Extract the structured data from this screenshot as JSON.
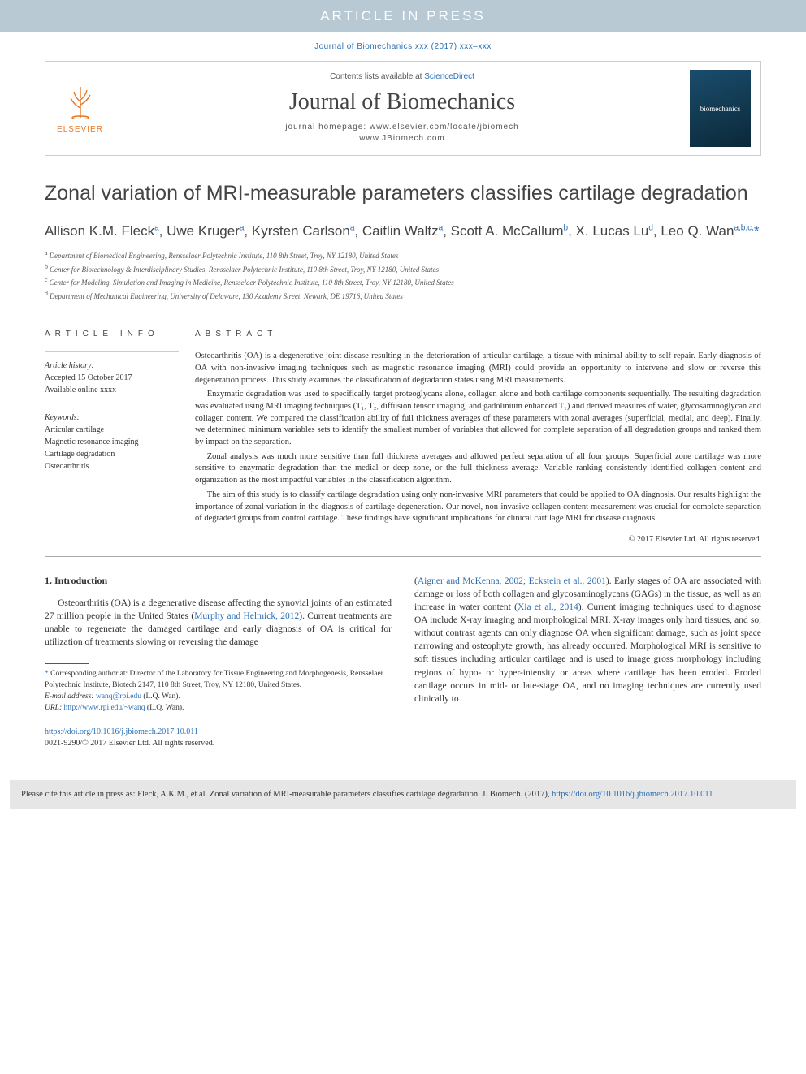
{
  "banner": {
    "text": "ARTICLE IN PRESS"
  },
  "citation": "Journal of Biomechanics xxx (2017) xxx–xxx",
  "header": {
    "contents_prefix": "Contents lists available at ",
    "contents_link": "ScienceDirect",
    "journal_name": "Journal of Biomechanics",
    "homepage_label": "journal homepage: ",
    "homepage_urls": "www.elsevier.com/locate/jbiomech\nwww.JBiomech.com",
    "publisher": "ELSEVIER",
    "cover_text": "biomechanics"
  },
  "title": "Zonal variation of MRI-measurable parameters classifies cartilage degradation",
  "authors_html": "Allison K.M. Fleck<sup>a</sup>, Uwe Kruger<sup>a</sup>, Kyrsten Carlson<sup>a</sup>, Caitlin Waltz<sup>a</sup>, Scott A. McCallum<sup>b</sup>, X. Lucas Lu<sup>d</sup>, Leo Q. Wan<sup>a,b,c,</sup><span class='star-sup'>*</span>",
  "affiliations": [
    {
      "sup": "a",
      "text": "Department of Biomedical Engineering, Rensselaer Polytechnic Institute, 110 8th Street, Troy, NY 12180, United States"
    },
    {
      "sup": "b",
      "text": "Center for Biotechnology & Interdisciplinary Studies, Rensselaer Polytechnic Institute, 110 8th Street, Troy, NY 12180, United States"
    },
    {
      "sup": "c",
      "text": "Center for Modeling, Simulation and Imaging in Medicine, Rensselaer Polytechnic Institute, 110 8th Street, Troy, NY 12180, United States"
    },
    {
      "sup": "d",
      "text": "Department of Mechanical Engineering, University of Delaware, 130 Academy Street, Newark, DE 19716, United States"
    }
  ],
  "info": {
    "label": "ARTICLE INFO",
    "history_label": "Article history:",
    "accepted": "Accepted 15 October 2017",
    "online": "Available online xxxx",
    "keywords_label": "Keywords:",
    "keywords": [
      "Articular cartilage",
      "Magnetic resonance imaging",
      "Cartilage degradation",
      "Osteoarthritis"
    ]
  },
  "abstract": {
    "label": "ABSTRACT",
    "paras": [
      "Osteoarthritis (OA) is a degenerative joint disease resulting in the deterioration of articular cartilage, a tissue with minimal ability to self-repair. Early diagnosis of OA with non-invasive imaging techniques such as magnetic resonance imaging (MRI) could provide an opportunity to intervene and slow or reverse this degeneration process. This study examines the classification of degradation states using MRI measurements.",
      "Enzymatic degradation was used to specifically target proteoglycans alone, collagen alone and both cartilage components sequentially. The resulting degradation was evaluated using MRI imaging techniques (T₁, T₂, diffusion tensor imaging, and gadolinium enhanced T₁) and derived measures of water, glycosaminoglycan and collagen content. We compared the classification ability of full thickness averages of these parameters with zonal averages (superficial, medial, and deep). Finally, we determined minimum variables sets to identify the smallest number of variables that allowed for complete separation of all degradation groups and ranked them by impact on the separation.",
      "Zonal analysis was much more sensitive than full thickness averages and allowed perfect separation of all four groups. Superficial zone cartilage was more sensitive to enzymatic degradation than the medial or deep zone, or the full thickness average. Variable ranking consistently identified collagen content and organization as the most impactful variables in the classification algorithm.",
      "The aim of this study is to classify cartilage degradation using only non-invasive MRI parameters that could be applied to OA diagnosis. Our results highlight the importance of zonal variation in the diagnosis of cartilage degeneration. Our novel, non-invasive collagen content measurement was crucial for complete separation of degraded groups from control cartilage. These findings have significant implications for clinical cartilage MRI for disease diagnosis."
    ],
    "copyright": "© 2017 Elsevier Ltd. All rights reserved."
  },
  "intro": {
    "heading": "1. Introduction",
    "col1": "Osteoarthritis (OA) is a degenerative disease affecting the synovial joints of an estimated 27 million people in the United States (<a>Murphy and Helmick, 2012</a>). Current treatments are unable to regenerate the damaged cartilage and early diagnosis of OA is critical for utilization of treatments slowing or reversing the damage",
    "col2": "(<a>Aigner and McKenna, 2002; Eckstein et al., 2001</a>). Early stages of OA are associated with damage or loss of both collagen and glycosaminoglycans (GAGs) in the tissue, as well as an increase in water content (<a>Xia et al., 2014</a>). Current imaging techniques used to diagnose OA include X-ray imaging and morphological MRI. X-ray images only hard tissues, and so, without contrast agents can only diagnose OA when significant damage, such as joint space narrowing and osteophyte growth, has already occurred. Morphological MRI is sensitive to soft tissues including articular cartilage and is used to image gross morphology including regions of hypo- or hyper-intensity or areas where cartilage has been eroded. Eroded cartilage occurs in mid- or late-stage OA, and no imaging techniques are currently used clinically to"
  },
  "footnotes": {
    "corresponding": "Corresponding author at: Director of the Laboratory for Tissue Engineering and Morphogenesis, Rensselaer Polytechnic Institute, Biotech 2147, 110 8th Street, Troy, NY 12180, United States.",
    "email_label": "E-mail address:",
    "email": "wanq@rpi.edu",
    "email_paren": "(L.Q. Wan).",
    "url_label": "URL:",
    "url": "http://www.rpi.edu/~wanq",
    "url_paren": "(L.Q. Wan)."
  },
  "doi": {
    "link": "https://doi.org/10.1016/j.jbiomech.2017.10.011",
    "issn": "0021-9290/© 2017 Elsevier Ltd. All rights reserved."
  },
  "cite_footer": {
    "text": "Please cite this article in press as: Fleck, A.K.M., et al. Zonal variation of MRI-measurable parameters classifies cartilage degradation. J. Biomech. (2017), ",
    "link": "https://doi.org/10.1016/j.jbiomech.2017.10.011"
  },
  "colors": {
    "banner_bg": "#b9c9d4",
    "link": "#2a6fb5",
    "orange": "#e87722",
    "footer_bg": "#e6e6e6"
  }
}
